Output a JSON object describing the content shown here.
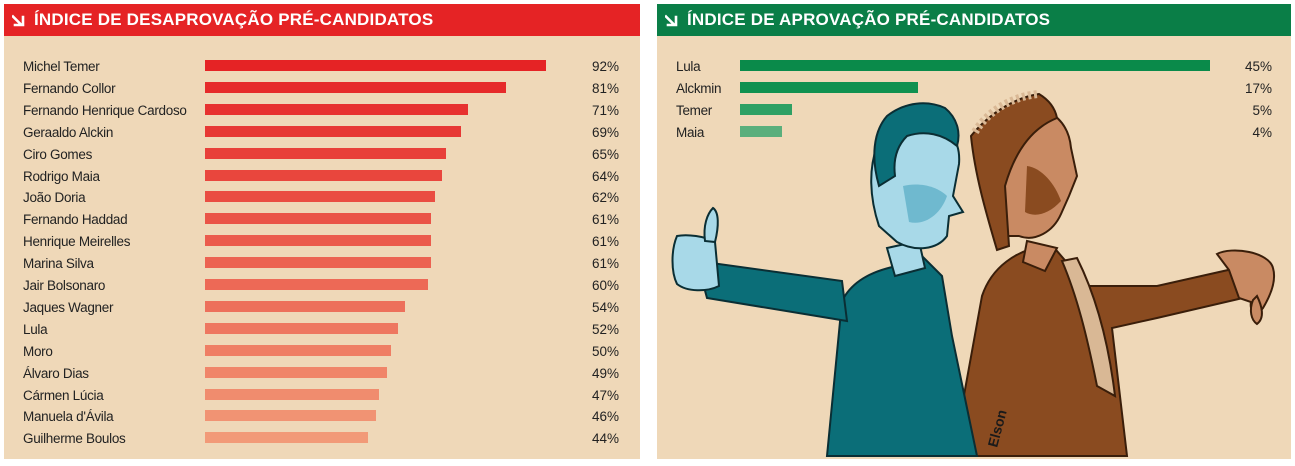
{
  "chart_data": [
    {
      "type": "bar",
      "orientation": "horizontal",
      "title": "ÍNDICE DE DESAPROVAÇÃO PRÉ-CANDIDATOS",
      "header_color": "#e52325",
      "bar_color_start": "#e52325",
      "bar_color_end": "#f29a78",
      "xlim": [
        0,
        100
      ],
      "unit": "%",
      "categories": [
        "Michel Temer",
        "Fernando Collor",
        "Fernando Henrique Cardoso",
        "Geraaldo Alckin",
        "Ciro Gomes",
        "Rodrigo Maia",
        "João Doria",
        "Fernando Haddad",
        "Henrique Meirelles",
        "Marina Silva",
        "Jair Bolsonaro",
        "Jaques Wagner",
        "Lula",
        "Moro",
        "Álvaro Dias",
        "Cármen Lúcia",
        "Manuela d'Ávila",
        "Guilherme Boulos"
      ],
      "values": [
        92,
        81,
        71,
        69,
        65,
        64,
        62,
        61,
        61,
        61,
        60,
        54,
        52,
        50,
        49,
        47,
        46,
        44
      ],
      "value_labels": [
        "92%",
        "81%",
        "71%",
        "69%",
        "65%",
        "64%",
        "62%",
        "61%",
        "61%",
        "61%",
        "60%",
        "54%",
        "52%",
        "50%",
        "49%",
        "47%",
        "46%",
        "44%"
      ]
    },
    {
      "type": "bar",
      "orientation": "horizontal",
      "title": "ÍNDICE DE APROVAÇÃO PRÉ-CANDIDATOS",
      "header_color": "#0a7e47",
      "bar_colors": [
        "#0a8a4a",
        "#0f9150",
        "#2fa064",
        "#5aaf7c"
      ],
      "xlim": [
        0,
        45
      ],
      "unit": "%",
      "categories": [
        "Lula",
        "Alckmin",
        "Temer",
        "Maia"
      ],
      "values": [
        45,
        17,
        5,
        4
      ],
      "value_labels": [
        "45%",
        "17%",
        "5%",
        "4%"
      ]
    }
  ],
  "illustration": {
    "description_icon": "cartoon-thumbs-up-thumbs-down-icon",
    "signature": "Elson"
  }
}
